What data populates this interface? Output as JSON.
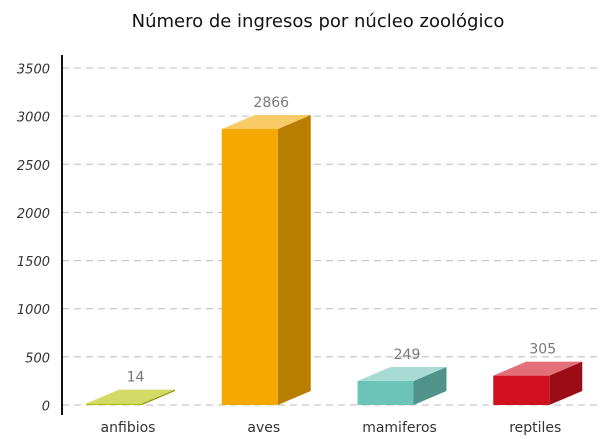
{
  "chart_data": {
    "type": "bar3d",
    "title": "Número de ingresos por núcleo zoológico",
    "categories": [
      "anfibios",
      "aves",
      "mamiferos",
      "reptiles"
    ],
    "values": [
      14,
      2866,
      249,
      305
    ],
    "colors": [
      "#b5c200",
      "#f5a800",
      "#6cc3b8",
      "#d0101e"
    ],
    "ylim": [
      0,
      3500
    ],
    "yticks": [
      0,
      500,
      1000,
      1500,
      2000,
      2500,
      3000,
      3500
    ],
    "grid": true
  }
}
